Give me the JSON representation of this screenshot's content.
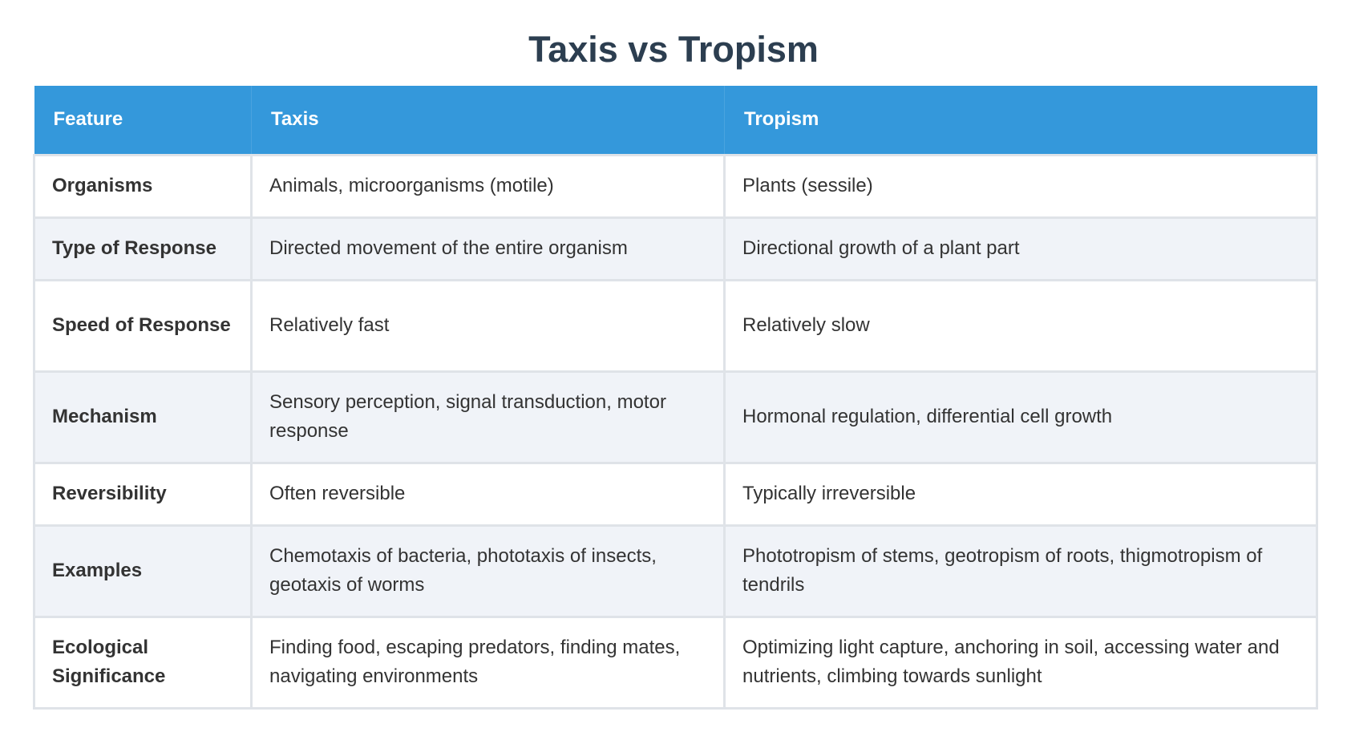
{
  "title": "Taxis vs Tropism",
  "table": {
    "headers": [
      "Feature",
      "Taxis",
      "Tropism"
    ],
    "rows": [
      {
        "feature": "Organisms",
        "taxis": "Animals, microorganisms (motile)",
        "tropism": "Plants (sessile)"
      },
      {
        "feature": "Type of Response",
        "taxis": "Directed movement of the entire organism",
        "tropism": "Directional growth of a plant part"
      },
      {
        "feature": "Speed of Response",
        "taxis": "Relatively fast",
        "tropism": "Relatively slow"
      },
      {
        "feature": "Mechanism",
        "taxis": "Sensory perception, signal transduction, motor response",
        "tropism": "Hormonal regulation, differential cell growth"
      },
      {
        "feature": "Reversibility",
        "taxis": "Often reversible",
        "tropism": "Typically irreversible"
      },
      {
        "feature": "Examples",
        "taxis": "Chemotaxis of bacteria, phototaxis of insects, geotaxis of worms",
        "tropism": "Phototropism of stems, geotropism of roots, thigmotropism of tendrils"
      },
      {
        "feature": "Ecological Significance",
        "taxis": "Finding food, escaping predators, finding mates, navigating environments",
        "tropism": "Optimizing light capture, anchoring in soil, accessing water and nutrients, climbing towards sunlight"
      }
    ]
  },
  "colors": {
    "header_bg": "#3498db",
    "title": "#2c3e50",
    "row_alt_bg": "#f0f3f8",
    "border": "#dfe3e8"
  }
}
